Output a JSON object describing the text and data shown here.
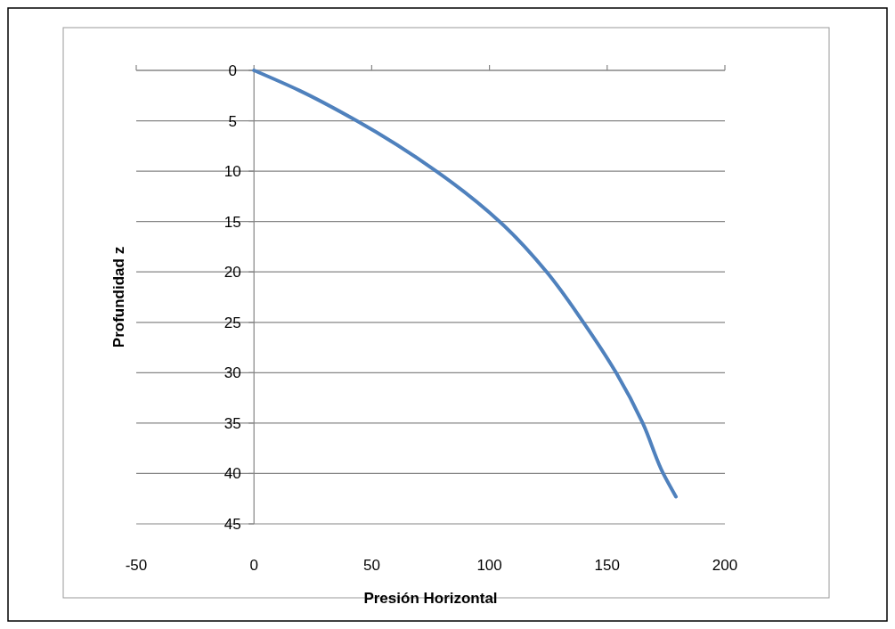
{
  "chart_data": {
    "type": "line",
    "xlabel": "Presión Horizontal",
    "ylabel": "Profundidad z",
    "x": [
      0,
      19.3,
      43.6,
      77.4,
      104.3,
      124.3,
      139.9,
      153.8,
      165.1,
      173.8,
      179.2
    ],
    "series": [
      {
        "color": "#4f81bd",
        "values": [
          0,
          2,
          5,
          10,
          15,
          20,
          25,
          30,
          35,
          40,
          42.3
        ]
      }
    ],
    "xlim": [
      -50,
      200
    ],
    "xticks": [
      -50,
      0,
      50,
      100,
      150,
      200
    ],
    "ylim": [
      45,
      0
    ],
    "yticks": [
      0,
      5,
      10,
      15,
      20,
      25,
      30,
      35,
      40,
      45
    ],
    "grid": "y",
    "marker": "none",
    "line_style": "solid"
  }
}
